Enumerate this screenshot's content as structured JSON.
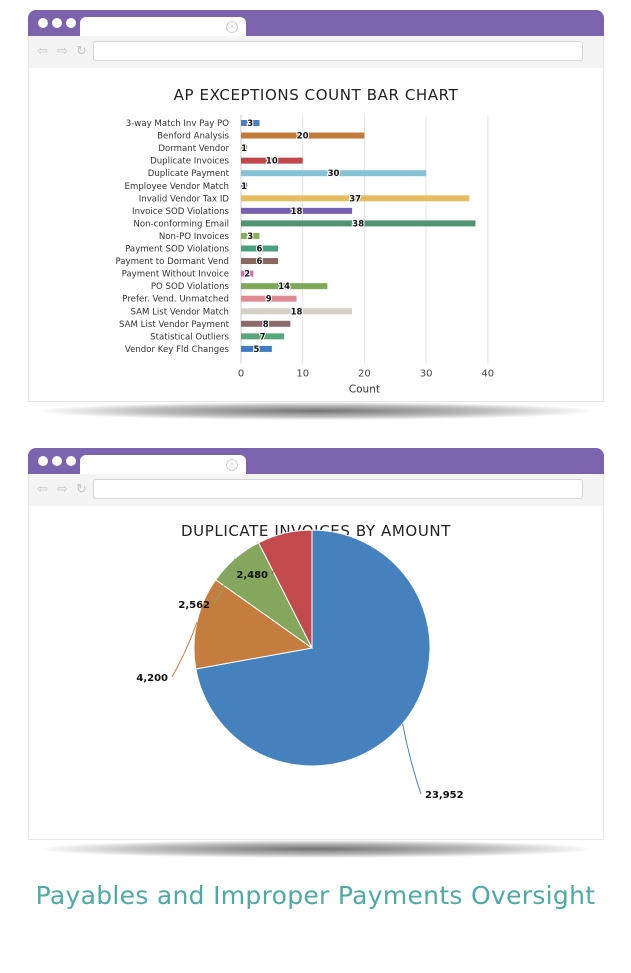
{
  "page": {
    "caption": "Payables and Improper Payments Oversight"
  },
  "browser": {
    "icons": [
      "back-arrow-icon",
      "forward-arrow-icon",
      "reload-icon",
      "close-icon"
    ],
    "titlebar_color": "#7b63ad"
  },
  "chart_data": [
    {
      "type": "bar",
      "orientation": "horizontal",
      "title": "AP EXCEPTIONS COUNT BAR CHART",
      "xlabel": "Count",
      "ylabel": "",
      "xlim": [
        0,
        40
      ],
      "xticks": [
        0,
        10,
        20,
        30,
        40
      ],
      "grid": true,
      "categories": [
        "3-way Match Inv Pay PO",
        "Benford Analysis",
        "Dormant Vendor",
        "Duplicate Invoices",
        "Duplicate Payment",
        "Employee Vendor Match",
        "Invalid Vendor Tax ID",
        "Invoice SOD Violations",
        "Non-conforming Email",
        "Non-PO Invoices",
        "Payment SOD Violations",
        "Payment to Dormant Vend",
        "Payment Without Invoice",
        "PO SOD Violations",
        "Prefer. Vend. Unmatched",
        "SAM List Vendor Match",
        "SAM List Vendor Payment",
        "Statistical Outliers",
        "Vendor Key Fld Changes"
      ],
      "values": [
        3,
        20,
        1,
        10,
        30,
        1,
        37,
        18,
        38,
        3,
        6,
        6,
        2,
        14,
        9,
        18,
        8,
        7,
        5
      ],
      "labels": [
        "3",
        "20",
        "1",
        "10",
        "30",
        "1",
        "37",
        "18",
        "38",
        "3",
        "6",
        "6",
        "2",
        "14",
        "9",
        "18",
        "8",
        "7",
        "5"
      ],
      "colors": [
        "#4a80c2",
        "#c27a3b",
        "#7eae62",
        "#c2474b",
        "#87c2d4",
        "#8f6bb8",
        "#e5bd62",
        "#7560b2",
        "#4f9373",
        "#86b15b",
        "#4aa07f",
        "#8a6960",
        "#c96fb6",
        "#80a85b",
        "#e08a93",
        "#d4cfc9",
        "#8a6b6a",
        "#5aa67d",
        "#3d7ec2"
      ]
    },
    {
      "type": "pie",
      "title": "DUPLICATE INVOICES BY AMOUNT",
      "values": [
        23952,
        4200,
        2562,
        2480
      ],
      "labels": [
        "23,952",
        "4,200",
        "2,562",
        "2,480"
      ],
      "colors": [
        "#4581bd",
        "#c47d3f",
        "#85a65d",
        "#c24a4d"
      ]
    }
  ]
}
